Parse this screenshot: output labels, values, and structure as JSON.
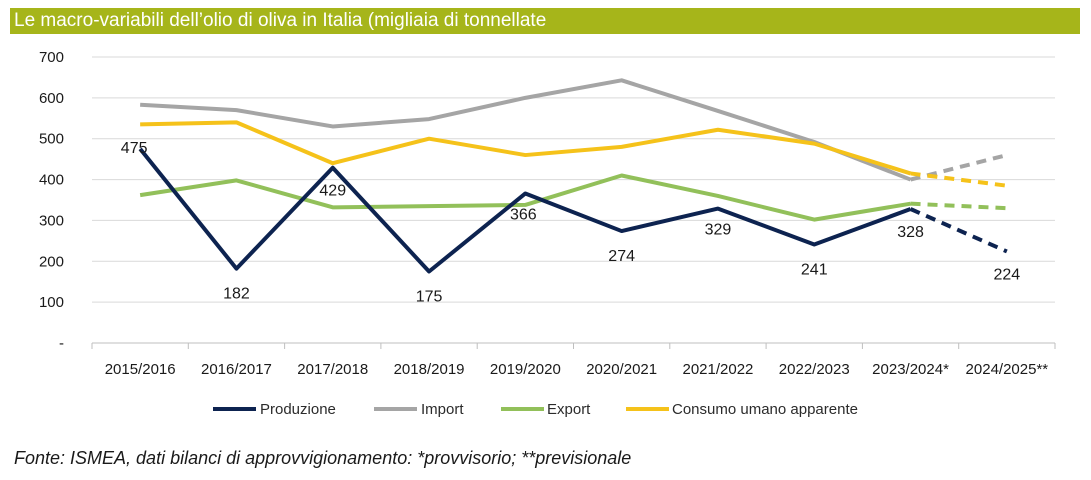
{
  "chart_data": {
    "type": "line",
    "title": "Le macro-variabili dell’olio di oliva in Italia (migliaia di tonnellate",
    "categories": [
      "2015/2016",
      "2016/2017",
      "2017/2018",
      "2018/2019",
      "2019/2020",
      "2020/2021",
      "2021/2022",
      "2022/2023",
      "2023/2024*",
      "2024/2025**"
    ],
    "y_ticks": [
      "-",
      "100",
      "200",
      "300",
      "400",
      "500",
      "600",
      "700"
    ],
    "ylim": [
      0,
      700
    ],
    "grid": true,
    "legend_position": "bottom",
    "series": [
      {
        "name": "Produzione",
        "color": "#0d2350",
        "values": [
          475,
          182,
          429,
          175,
          366,
          274,
          329,
          241,
          328,
          224
        ],
        "labels": [
          "475",
          "182",
          "429",
          "175",
          "366",
          "274",
          "329",
          "241",
          "328",
          "224"
        ]
      },
      {
        "name": "Import",
        "color": "#a5a5a5",
        "values": [
          583,
          570,
          530,
          548,
          600,
          643,
          568,
          492,
          400,
          460
        ]
      },
      {
        "name": "Export",
        "color": "#92c05a",
        "values": [
          362,
          398,
          332,
          335,
          338,
          410,
          360,
          302,
          341,
          330
        ]
      },
      {
        "name": "Consumo umano  apparente",
        "color": "#f5c21a",
        "values": [
          535,
          540,
          440,
          500,
          460,
          480,
          522,
          488,
          415,
          385
        ]
      }
    ],
    "forecast_from_index": 8
  },
  "source": "Fonte: ISMEA, dati bilanci di approvvigionamento: *provvisorio; **previsionale"
}
